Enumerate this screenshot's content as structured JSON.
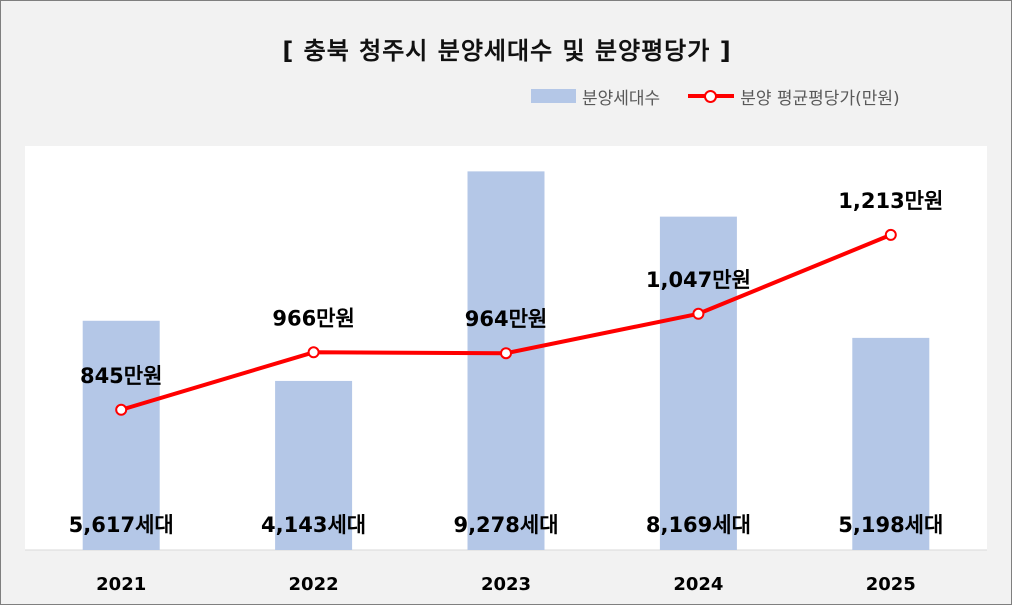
{
  "chart_data": {
    "type": "bar+line",
    "title": "[ 충북 청주시 분양세대수 및 분양평당가 ]",
    "categories": [
      "2021",
      "2022",
      "2023",
      "2024",
      "2025"
    ],
    "series": [
      {
        "name": "분양세대수",
        "type": "bar",
        "axis": "left",
        "color": "#b4c7e7",
        "values": [
          5617,
          4143,
          9278,
          8169,
          5198
        ],
        "labels": [
          "5,617세대",
          "4,143세대",
          "9,278세대",
          "8,169세대",
          "5,198세대"
        ]
      },
      {
        "name": "분양 평균평당가(만원)",
        "type": "line",
        "axis": "right",
        "color": "#ff0000",
        "values": [
          845,
          966,
          964,
          1047,
          1213
        ],
        "labels": [
          "845만원",
          "966만원",
          "964만원",
          "1,047만원",
          "1,213만원"
        ]
      }
    ],
    "bar_ylim": [
      0,
      9900
    ],
    "line_ylim": [
      550,
      1400
    ],
    "legend_position": "top-right",
    "grid": false
  }
}
